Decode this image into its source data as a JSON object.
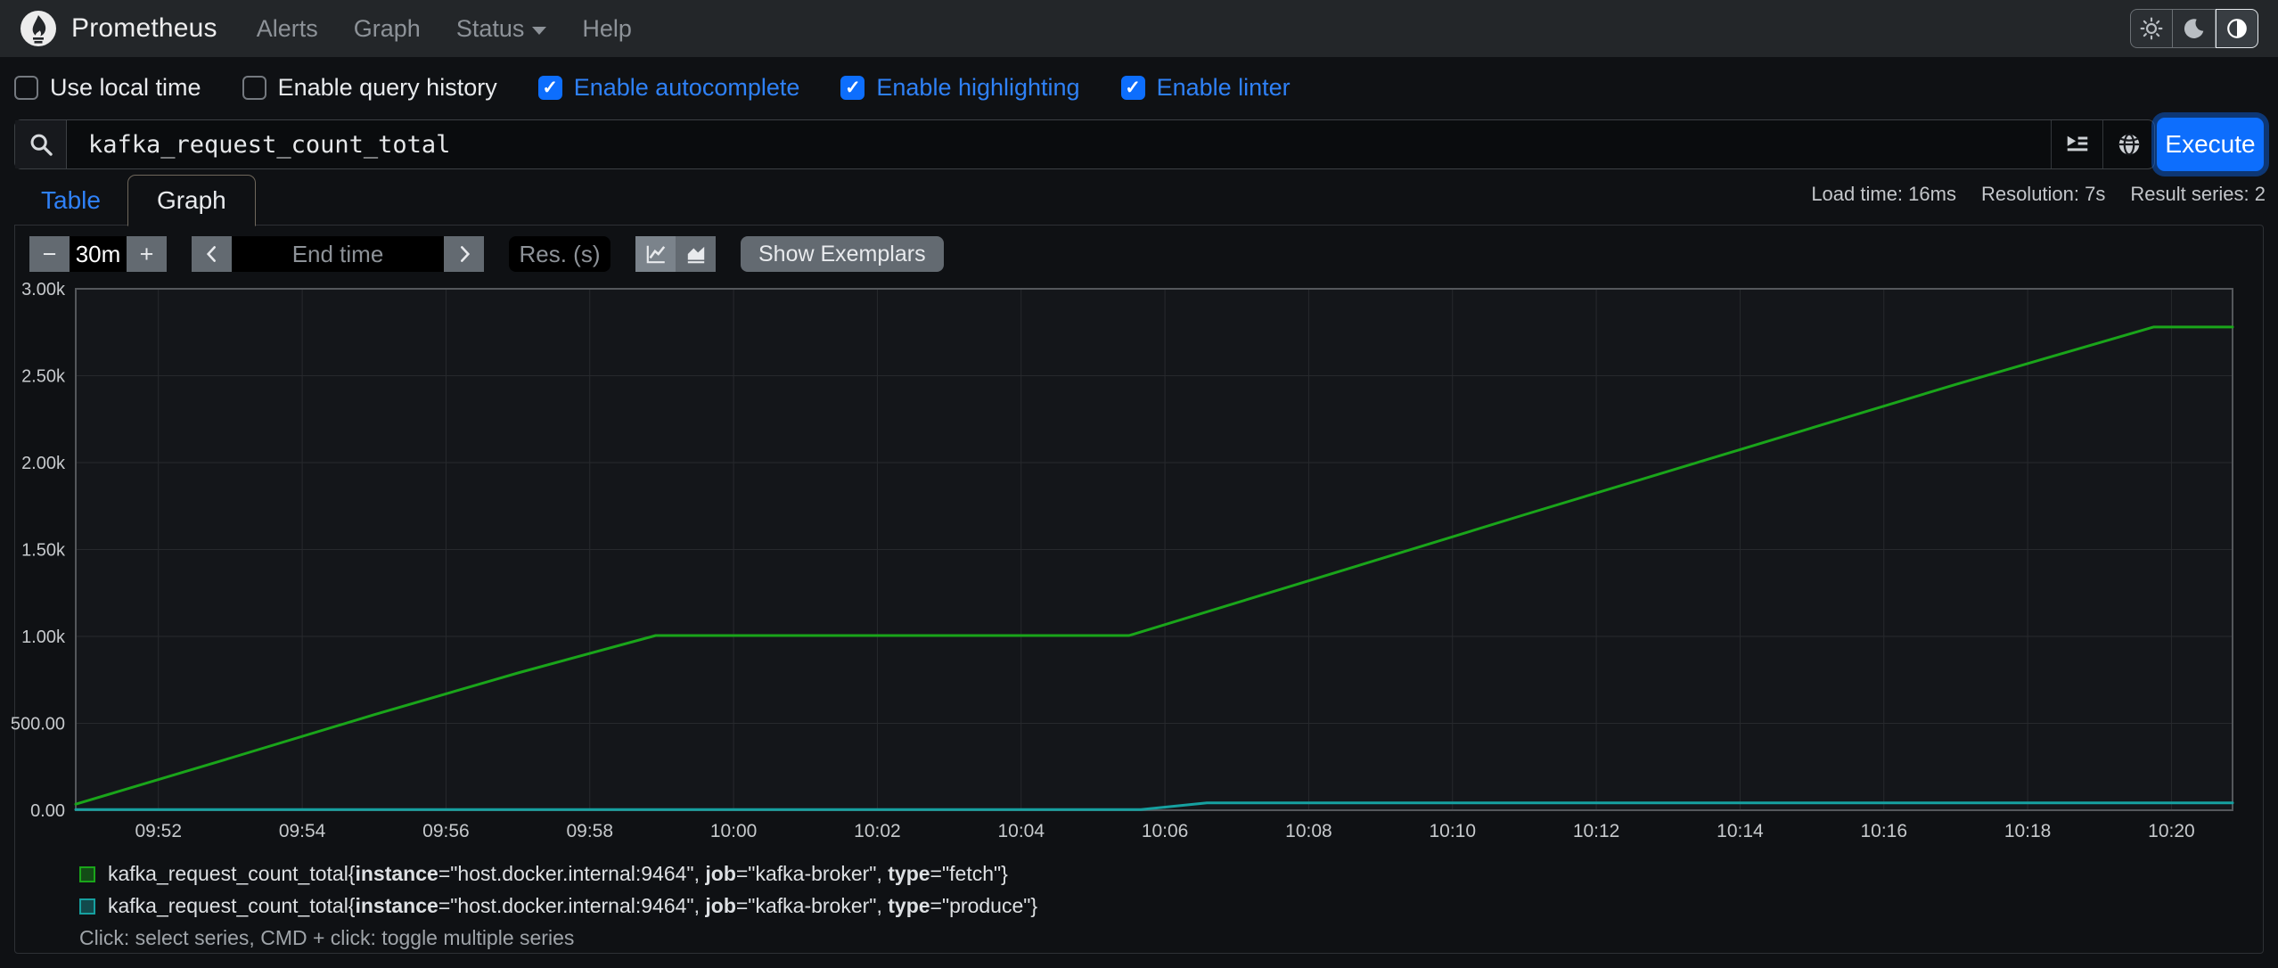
{
  "navbar": {
    "brand": "Prometheus",
    "items": [
      {
        "label": "Alerts"
      },
      {
        "label": "Graph"
      },
      {
        "label": "Status",
        "dropdown": true
      },
      {
        "label": "Help"
      }
    ]
  },
  "theme_toggle": {
    "buttons": [
      {
        "name": "light",
        "active": false
      },
      {
        "name": "dark",
        "active": false
      },
      {
        "name": "auto",
        "active": true
      }
    ]
  },
  "options": {
    "items": [
      {
        "label": "Use local time",
        "checked": false
      },
      {
        "label": "Enable query history",
        "checked": false
      },
      {
        "label": "Enable autocomplete",
        "checked": true
      },
      {
        "label": "Enable highlighting",
        "checked": true
      },
      {
        "label": "Enable linter",
        "checked": true
      }
    ]
  },
  "query": {
    "value": "kafka_request_count_total",
    "execute_label": "Execute"
  },
  "tabs": {
    "table": "Table",
    "graph": "Graph"
  },
  "stats": {
    "load_time": "Load time: 16ms",
    "resolution": "Resolution: 7s",
    "result_series": "Result series: 2"
  },
  "controls": {
    "decrease": "−",
    "range": "30m",
    "increase": "+",
    "end_time_placeholder": "End time",
    "res_placeholder": "Res. (s)",
    "show_exemplars": "Show Exemplars"
  },
  "chart_data": {
    "type": "line",
    "title": "",
    "xlabel": "",
    "ylabel": "",
    "x_range": [
      "09:50:51",
      "10:20:51"
    ],
    "y_range": [
      0,
      3000
    ],
    "grid": true,
    "legend_position": "bottom",
    "y_ticks": [
      {
        "value": 0,
        "label": "0.00"
      },
      {
        "value": 500,
        "label": "500.00"
      },
      {
        "value": 1000,
        "label": "1.00k"
      },
      {
        "value": 1500,
        "label": "1.50k"
      },
      {
        "value": 2000,
        "label": "2.00k"
      },
      {
        "value": 2500,
        "label": "2.50k"
      },
      {
        "value": 3000,
        "label": "3.00k"
      }
    ],
    "x_ticks": [
      "09:52",
      "09:54",
      "09:56",
      "09:58",
      "10:00",
      "10:02",
      "10:04",
      "10:06",
      "10:08",
      "10:10",
      "10:12",
      "10:14",
      "10:16",
      "10:18",
      "10:20"
    ],
    "series": [
      {
        "name": "kafka_request_count_total{instance=\"host.docker.internal:9464\", job=\"kafka-broker\", type=\"fetch\"}",
        "color": "#1aa51a",
        "points": [
          [
            "09:50:51",
            35
          ],
          [
            "09:53:00",
            300
          ],
          [
            "09:55:00",
            550
          ],
          [
            "09:57:00",
            790
          ],
          [
            "09:58:55",
            1005
          ],
          [
            "10:02:00",
            1005
          ],
          [
            "10:05:30",
            1005
          ],
          [
            "10:08:00",
            1320
          ],
          [
            "10:11:00",
            1700
          ],
          [
            "10:14:00",
            2075
          ],
          [
            "10:17:00",
            2450
          ],
          [
            "10:19:45",
            2780
          ],
          [
            "10:20:51",
            2780
          ]
        ]
      },
      {
        "name": "kafka_request_count_total{instance=\"host.docker.internal:9464\", job=\"kafka-broker\", type=\"produce\"}",
        "color": "#16a0a0",
        "points": [
          [
            "09:50:51",
            4
          ],
          [
            "10:05:40",
            4
          ],
          [
            "10:06:35",
            42
          ],
          [
            "10:20:51",
            42
          ]
        ]
      }
    ]
  },
  "legend": {
    "items": [
      {
        "color": "#1aa51a",
        "parts": [
          {
            "text": "kafka_request_count_total{"
          },
          {
            "text": "instance",
            "bold": true
          },
          {
            "text": "=\"host.docker.internal:9464\", "
          },
          {
            "text": "job",
            "bold": true
          },
          {
            "text": "=\"kafka-broker\", "
          },
          {
            "text": "type",
            "bold": true
          },
          {
            "text": "=\"fetch\"}"
          }
        ]
      },
      {
        "color": "#16a0a0",
        "parts": [
          {
            "text": "kafka_request_count_total{"
          },
          {
            "text": "instance",
            "bold": true
          },
          {
            "text": "=\"host.docker.internal:9464\", "
          },
          {
            "text": "job",
            "bold": true
          },
          {
            "text": "=\"kafka-broker\", "
          },
          {
            "text": "type",
            "bold": true
          },
          {
            "text": "=\"produce\"}"
          }
        ]
      }
    ],
    "note": "Click: select series, CMD + click: toggle multiple series"
  }
}
